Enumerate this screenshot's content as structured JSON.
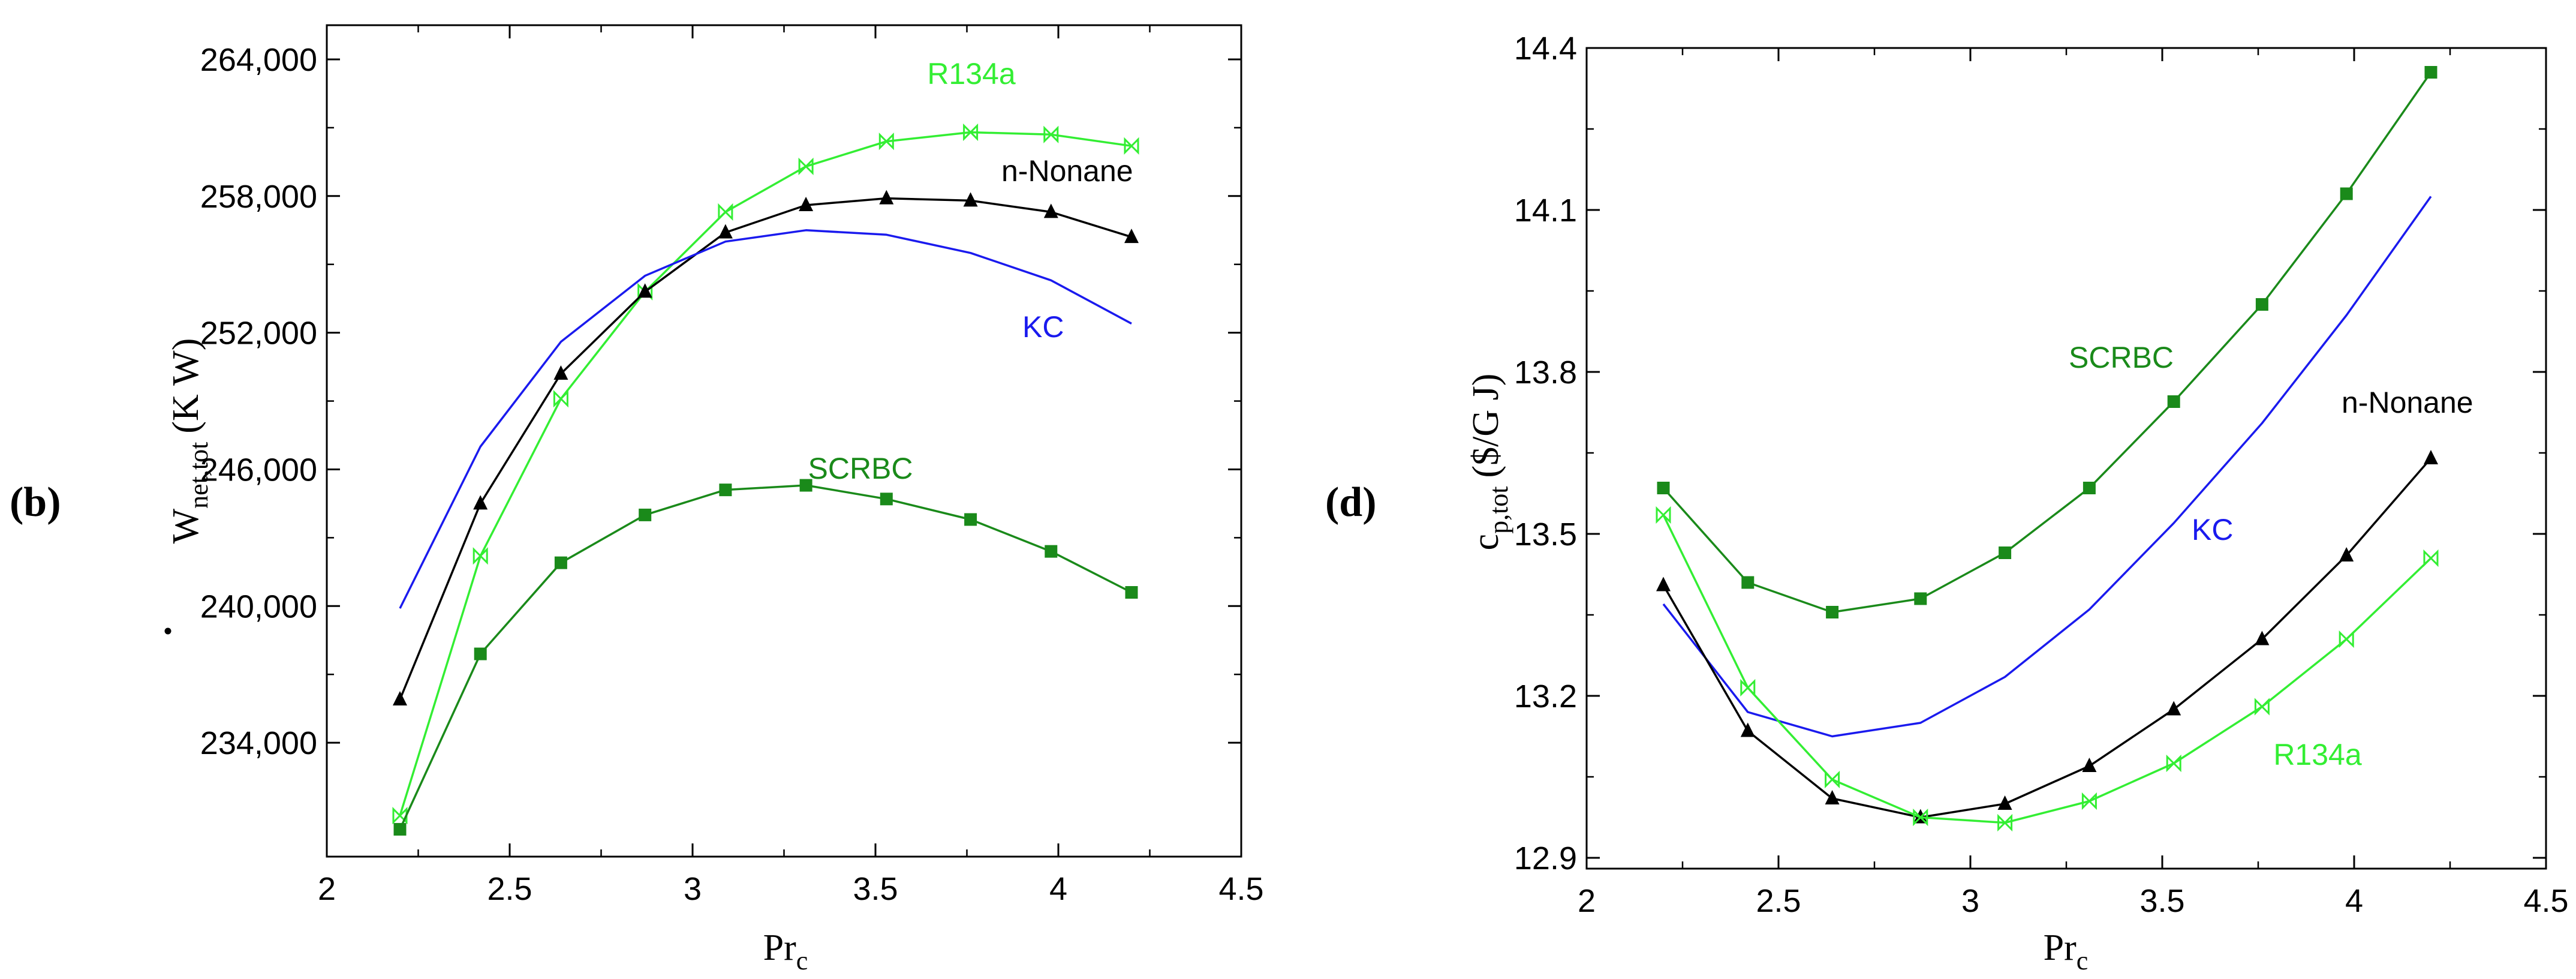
{
  "chart_data": [
    {
      "type": "line",
      "panel_label": "(b)",
      "title": "",
      "xlabel": "Pr",
      "xlabel_sub": "c",
      "ylabel": "W",
      "ylabel_sub": "net,tot",
      "ylabel_unit": "(K W)",
      "xlim": [
        2,
        4.5
      ],
      "ylim": [
        229000,
        265500
      ],
      "xticks": [
        2,
        2.5,
        3,
        3.5,
        4,
        4.5
      ],
      "xtick_labels": [
        "2",
        "2.5",
        "3",
        "3.5",
        "4",
        "4.5"
      ],
      "yticks": [
        234000,
        240000,
        246000,
        252000,
        258000,
        264000
      ],
      "ytick_labels": [
        "234,000",
        "240,000",
        "246,000",
        "252,000",
        "258,000",
        "264,000"
      ],
      "grid": false,
      "legend": "inline labels",
      "series": [
        {
          "name": "R134a",
          "color": "#33ee33",
          "marker": "bowtie",
          "x": [
            2.2,
            2.42,
            2.64,
            2.87,
            3.09,
            3.31,
            3.53,
            3.76,
            3.98,
            4.2
          ],
          "y": [
            230800,
            242200,
            249100,
            253800,
            257300,
            259300,
            260400,
            260800,
            260700,
            260200
          ]
        },
        {
          "name": "n-Nonane",
          "color": "#000000",
          "marker": "triangle",
          "x": [
            2.2,
            2.42,
            2.64,
            2.87,
            3.09,
            3.31,
            3.53,
            3.76,
            3.98,
            4.2
          ],
          "y": [
            235900,
            244500,
            250200,
            253800,
            256400,
            257600,
            257900,
            257800,
            257300,
            256200
          ]
        },
        {
          "name": "KC",
          "color": "#1a1aee",
          "marker": "none",
          "x": [
            2.2,
            2.42,
            2.64,
            2.87,
            3.09,
            3.31,
            3.53,
            3.76,
            3.98,
            4.2
          ],
          "y": [
            239900,
            247000,
            251600,
            254500,
            256000,
            256500,
            256300,
            255500,
            254300,
            252400
          ]
        },
        {
          "name": "SCRBC",
          "color": "#1a8a1a",
          "marker": "square",
          "x": [
            2.2,
            2.42,
            2.64,
            2.87,
            3.09,
            3.31,
            3.53,
            3.76,
            3.98,
            4.2
          ],
          "y": [
            230200,
            237900,
            241900,
            244000,
            245100,
            245300,
            244700,
            243800,
            242400,
            240600
          ]
        }
      ]
    },
    {
      "type": "line",
      "panel_label": "(d)",
      "title": "",
      "xlabel": "Pr",
      "xlabel_sub": "c",
      "ylabel": "c",
      "ylabel_sub": "p,tot",
      "ylabel_unit": "($/G J)",
      "xlim": [
        2,
        4.5
      ],
      "ylim": [
        12.88,
        14.4
      ],
      "xticks": [
        2,
        2.5,
        3,
        3.5,
        4,
        4.5
      ],
      "xtick_labels": [
        "2",
        "2.5",
        "3",
        "3.5",
        "4",
        "4.5"
      ],
      "yticks": [
        12.9,
        13.2,
        13.5,
        13.8,
        14.1,
        14.4
      ],
      "ytick_labels": [
        "12.9",
        "13.2",
        "13.5",
        "13.8",
        "14.1",
        "14.4"
      ],
      "grid": false,
      "legend": "inline labels",
      "series": [
        {
          "name": "SCRBC",
          "color": "#1a8a1a",
          "marker": "square",
          "x": [
            2.2,
            2.42,
            2.64,
            2.87,
            3.09,
            3.31,
            3.53,
            3.76,
            3.98,
            4.2
          ],
          "y": [
            13.585,
            13.41,
            13.355,
            13.38,
            13.465,
            13.585,
            13.745,
            13.925,
            14.13,
            14.355
          ]
        },
        {
          "name": "KC",
          "color": "#1a1aee",
          "marker": "none",
          "x": [
            2.2,
            2.42,
            2.64,
            2.87,
            3.09,
            3.31,
            3.53,
            3.76,
            3.98,
            4.2
          ],
          "y": [
            13.37,
            13.17,
            13.125,
            13.15,
            13.235,
            13.36,
            13.52,
            13.705,
            13.905,
            14.125
          ]
        },
        {
          "name": "n-Nonane",
          "color": "#000000",
          "marker": "triangle",
          "x": [
            2.2,
            2.42,
            2.64,
            2.87,
            3.09,
            3.31,
            3.53,
            3.76,
            3.98,
            4.2
          ],
          "y": [
            13.405,
            13.135,
            13.01,
            12.975,
            13.0,
            13.07,
            13.175,
            13.305,
            13.46,
            13.64
          ]
        },
        {
          "name": "R134a",
          "color": "#33ee33",
          "marker": "bowtie",
          "x": [
            2.2,
            2.42,
            2.64,
            2.87,
            3.09,
            3.31,
            3.53,
            3.76,
            3.98,
            4.2
          ],
          "y": [
            13.535,
            13.215,
            13.045,
            12.975,
            12.965,
            13.005,
            13.075,
            13.18,
            13.305,
            13.455
          ]
        }
      ]
    }
  ]
}
